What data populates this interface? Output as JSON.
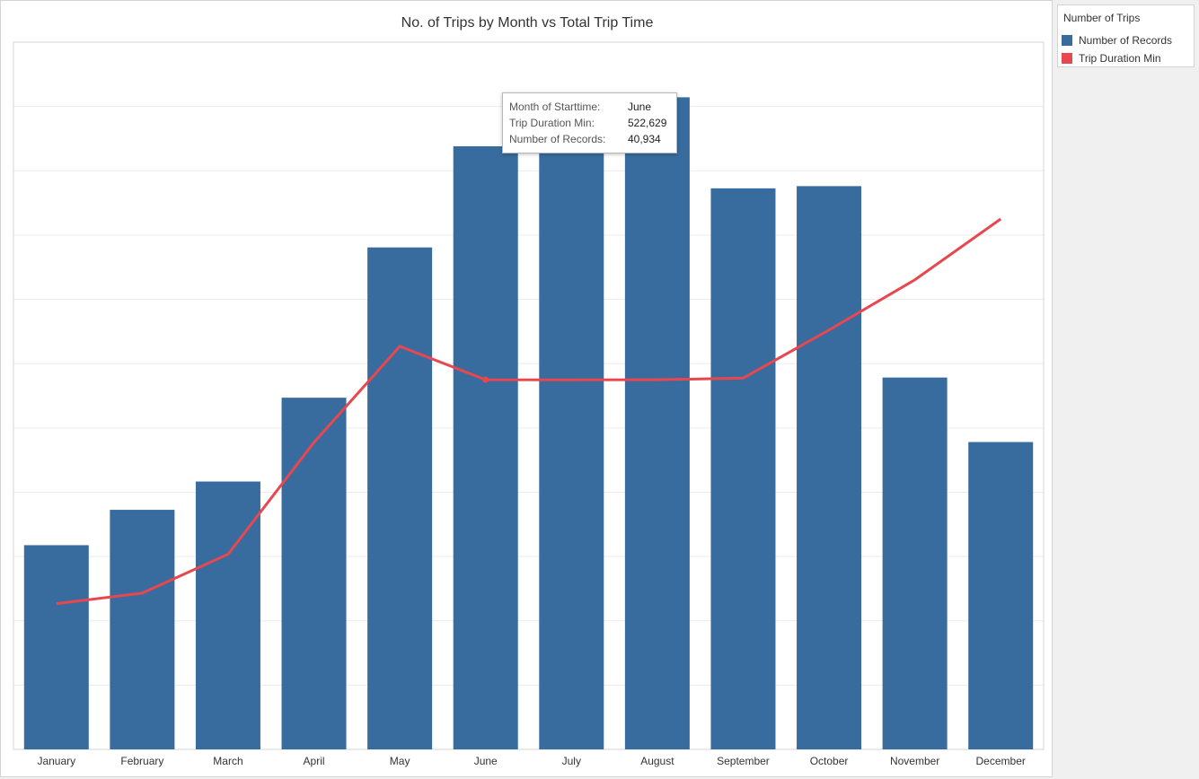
{
  "chart_data": {
    "type": "bar",
    "title": "No. of Trips by Month vs Total Trip Time",
    "categories": [
      "January",
      "February",
      "March",
      "April",
      "May",
      "June",
      "July",
      "August",
      "September",
      "October",
      "November",
      "December"
    ],
    "series": [
      {
        "name": "Number of Records",
        "kind": "bar",
        "color": "#386c9f",
        "values": [
          13860,
          16260,
          18180,
          23870,
          34070,
          40934,
          41970,
          44260,
          38080,
          38230,
          25240,
          20860
        ]
      },
      {
        "name": "Trip Duration Min",
        "kind": "line",
        "color": "#e8474f",
        "values": [
          206000,
          221000,
          276000,
          434000,
          570000,
          522629,
          522570,
          522630,
          525000,
          593000,
          664000,
          750000
        ]
      }
    ],
    "ylim": [
      0,
      48000
    ],
    "y2lim": [
      0,
      1000000
    ],
    "grid": true,
    "legend_position": "right"
  },
  "legend": {
    "title": "Number of Trips",
    "items": [
      {
        "label": "Number of Records",
        "color": "#386c9f"
      },
      {
        "label": "Trip Duration Min",
        "color": "#e8474f"
      }
    ]
  },
  "tooltip": {
    "month_key": "Month of Starttime:",
    "month_value": "June",
    "duration_key": "Trip Duration Min:",
    "duration_value": "522,629",
    "records_key": "Number of Records:",
    "records_value": "40,934"
  }
}
